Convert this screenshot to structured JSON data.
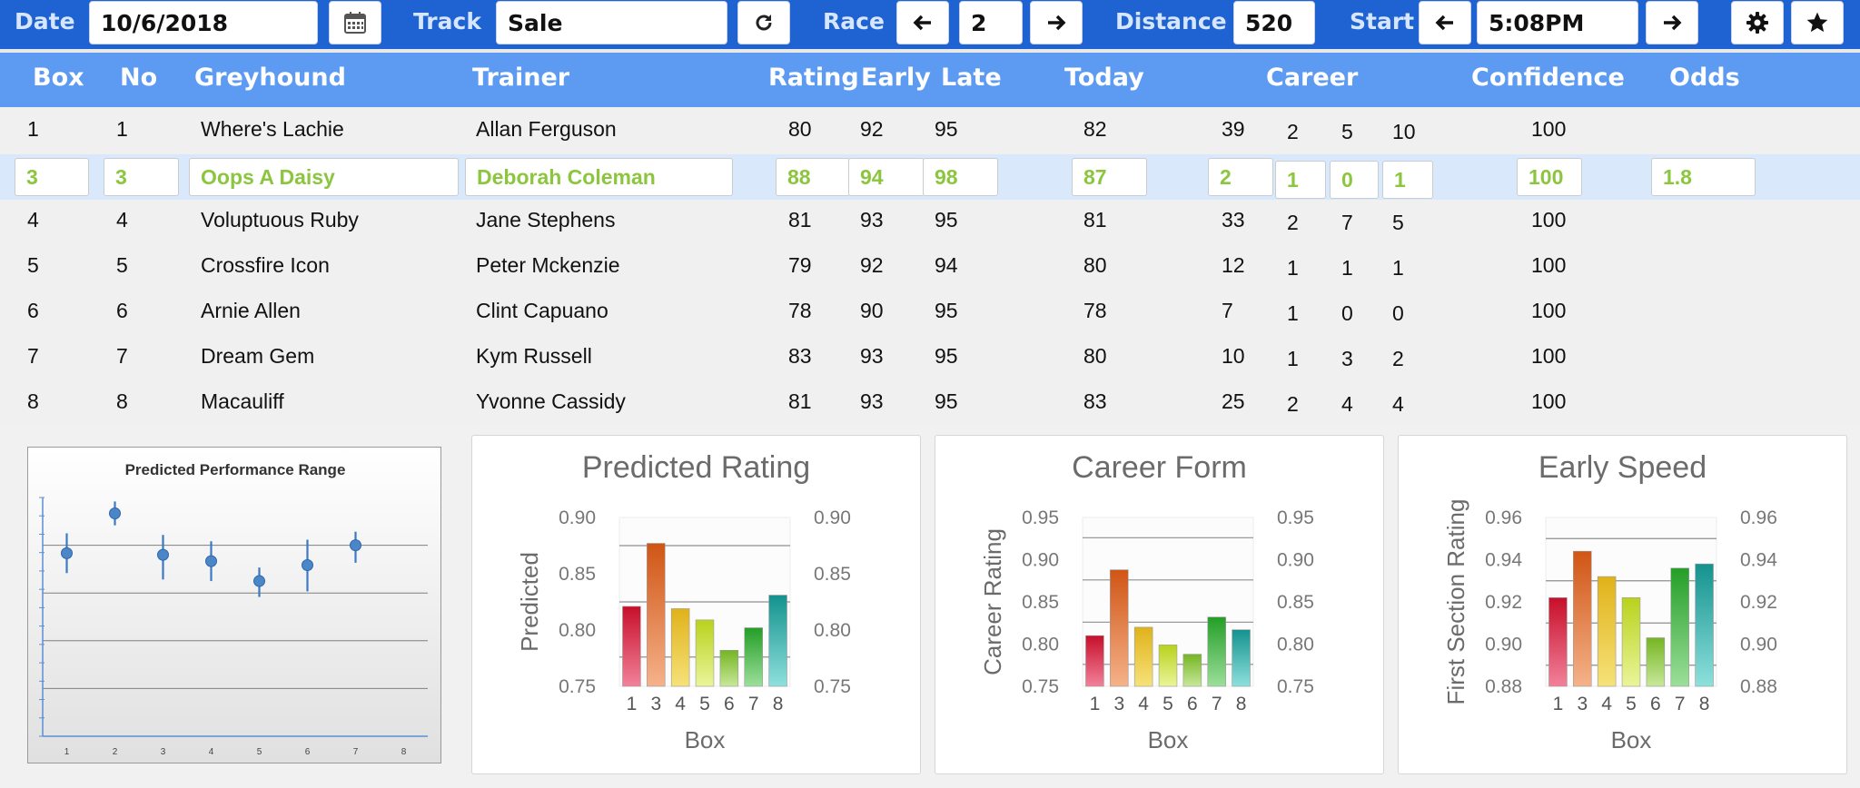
{
  "toolbar": {
    "date_label": "Date",
    "date_value": "10/6/2018",
    "track_label": "Track",
    "track_value": "Sale",
    "race_label": "Race",
    "race_value": "2",
    "distance_label": "Distance",
    "distance_value": "520",
    "start_label": "Start",
    "start_value": "5:08PM"
  },
  "table": {
    "headers": [
      "Box",
      "No",
      "Greyhound",
      "Trainer",
      "Rating",
      "Early",
      "Late",
      "Today",
      "Career",
      "Confidence",
      "Odds"
    ],
    "rows": [
      {
        "box": "1",
        "no": "1",
        "dog": "Where's Lachie",
        "trainer": "Allan Ferguson",
        "rating": "80",
        "early": "92",
        "late": "95",
        "today": "82",
        "c1": "39",
        "c2": "2",
        "c3": "5",
        "c4": "10",
        "conf": "100",
        "odds": ""
      },
      {
        "box": "3",
        "no": "3",
        "dog": "Oops A Daisy",
        "trainer": "Deborah Coleman",
        "rating": "88",
        "early": "94",
        "late": "98",
        "today": "87",
        "c1": "2",
        "c2": "1",
        "c3": "0",
        "c4": "1",
        "conf": "100",
        "odds": "1.8"
      },
      {
        "box": "4",
        "no": "4",
        "dog": "Voluptuous Ruby",
        "trainer": "Jane Stephens",
        "rating": "81",
        "early": "93",
        "late": "95",
        "today": "81",
        "c1": "33",
        "c2": "2",
        "c3": "7",
        "c4": "5",
        "conf": "100",
        "odds": ""
      },
      {
        "box": "5",
        "no": "5",
        "dog": "Crossfire Icon",
        "trainer": "Peter Mckenzie",
        "rating": "79",
        "early": "92",
        "late": "94",
        "today": "80",
        "c1": "12",
        "c2": "1",
        "c3": "1",
        "c4": "1",
        "conf": "100",
        "odds": ""
      },
      {
        "box": "6",
        "no": "6",
        "dog": "Arnie Allen",
        "trainer": "Clint Capuano",
        "rating": "78",
        "early": "90",
        "late": "95",
        "today": "78",
        "c1": "7",
        "c2": "1",
        "c3": "0",
        "c4": "0",
        "conf": "100",
        "odds": ""
      },
      {
        "box": "7",
        "no": "7",
        "dog": "Dream Gem",
        "trainer": "Kym Russell",
        "rating": "83",
        "early": "93",
        "late": "95",
        "today": "80",
        "c1": "10",
        "c2": "1",
        "c3": "3",
        "c4": "2",
        "conf": "100",
        "odds": ""
      },
      {
        "box": "8",
        "no": "8",
        "dog": "Macauliff",
        "trainer": "Yvonne Cassidy",
        "rating": "81",
        "early": "93",
        "late": "95",
        "today": "83",
        "c1": "25",
        "c2": "2",
        "c3": "4",
        "c4": "4",
        "conf": "100",
        "odds": ""
      }
    ]
  },
  "colors": {
    "toolbar_bg": "#1f63d2",
    "header_bg": "#5d9bf3",
    "selected_row_bg": "#dae8fb",
    "selected_text": "#8cc63f",
    "point_color": "#4a86c8"
  },
  "icons": [
    "calendar-icon",
    "refresh-icon",
    "arrow-left-icon",
    "arrow-right-icon",
    "gear-icon",
    "star-icon"
  ],
  "chart_data": [
    {
      "type": "scatter",
      "title": "Predicted Performance Range",
      "categories": [
        "1",
        "2",
        "3",
        "4",
        "5",
        "6",
        "7",
        "8"
      ],
      "points": [
        {
          "x": 1,
          "y": 0.83,
          "low": 0.805,
          "high": 0.855
        },
        {
          "x": 2,
          "y": 0.88,
          "low": 0.865,
          "high": 0.895
        },
        {
          "x": 3,
          "y": 0.828,
          "low": 0.797,
          "high": 0.853
        },
        {
          "x": 4,
          "y": 0.82,
          "low": 0.795,
          "high": 0.845
        },
        {
          "x": 5,
          "y": 0.795,
          "low": 0.775,
          "high": 0.812
        },
        {
          "x": 6,
          "y": 0.815,
          "low": 0.782,
          "high": 0.847
        },
        {
          "x": 7,
          "y": 0.84,
          "low": 0.818,
          "high": 0.857
        }
      ],
      "ylim": [
        0.6,
        0.9
      ]
    },
    {
      "type": "bar",
      "title": "Predicted Rating",
      "xlabel": "Box",
      "ylabel": "Predicted",
      "categories": [
        "1",
        "3",
        "4",
        "5",
        "6",
        "7",
        "8"
      ],
      "values": [
        0.821,
        0.877,
        0.819,
        0.809,
        0.782,
        0.802,
        0.831
      ],
      "ylim": [
        0.75,
        0.9
      ],
      "yticks": [
        "0.75",
        "0.80",
        "0.85",
        "0.90"
      ],
      "y2ticks": [
        "0.75",
        "0.80",
        "0.85",
        "0.90"
      ],
      "gridlines": [
        0.776,
        0.825,
        0.875
      ]
    },
    {
      "type": "bar",
      "title": "Career Form",
      "xlabel": "Box",
      "ylabel": "Career Rating",
      "categories": [
        "1",
        "3",
        "4",
        "5",
        "6",
        "7",
        "8"
      ],
      "values": [
        0.81,
        0.888,
        0.82,
        0.799,
        0.788,
        0.832,
        0.817
      ],
      "ylim": [
        0.75,
        0.95
      ],
      "yticks": [
        "0.75",
        "0.80",
        "0.85",
        "0.90",
        "0.95"
      ],
      "y2ticks": [
        "0.75",
        "0.80",
        "0.85",
        "0.90",
        "0.95"
      ],
      "gridlines": [
        0.776,
        0.826,
        0.876,
        0.926
      ]
    },
    {
      "type": "bar",
      "title": "Early Speed",
      "xlabel": "Box",
      "ylabel": "First Section Rating",
      "categories": [
        "1",
        "3",
        "4",
        "5",
        "6",
        "7",
        "8"
      ],
      "values": [
        0.922,
        0.944,
        0.932,
        0.922,
        0.903,
        0.936,
        0.938
      ],
      "ylim": [
        0.88,
        0.96
      ],
      "yticks": [
        "0.88",
        "0.90",
        "0.92",
        "0.94",
        "0.96"
      ],
      "y2ticks": [
        "0.88",
        "0.90",
        "0.92",
        "0.94",
        "0.96"
      ],
      "gridlines": [
        0.89,
        0.91,
        0.93,
        0.95
      ]
    }
  ]
}
